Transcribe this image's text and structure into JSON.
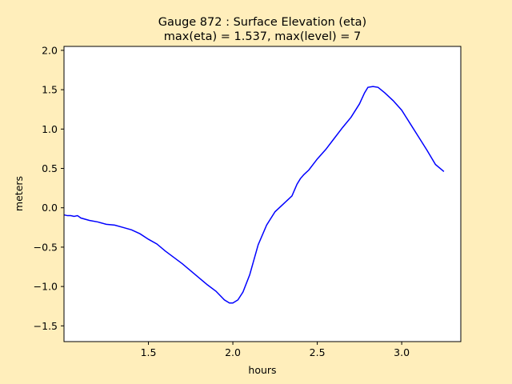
{
  "chart_data": {
    "type": "line",
    "title_line1": "Gauge 872 : Surface Elevation (eta)",
    "title_line2": "max(eta) =   1.537,    max(level) = 7",
    "xlabel": "hours",
    "ylabel": "meters",
    "xlim": [
      1.0,
      3.35
    ],
    "ylim": [
      -1.7,
      2.05
    ],
    "xticks": [
      1.5,
      2.0,
      2.5,
      3.0
    ],
    "xtick_labels": [
      "1.5",
      "2.0",
      "2.5",
      "3.0"
    ],
    "yticks": [
      2.0,
      1.5,
      1.0,
      0.5,
      0.0,
      -0.5,
      -1.0,
      -1.5
    ],
    "ytick_labels": [
      "2.0",
      "1.5",
      "1.0",
      "0.5",
      "0.0",
      "−0.5",
      "−1.0",
      "−1.5"
    ],
    "grid": false,
    "series": [
      {
        "color": "#0000ff",
        "x": [
          1.0,
          1.02,
          1.04,
          1.06,
          1.08,
          1.1,
          1.15,
          1.2,
          1.25,
          1.3,
          1.35,
          1.4,
          1.45,
          1.5,
          1.55,
          1.6,
          1.65,
          1.7,
          1.75,
          1.8,
          1.85,
          1.9,
          1.95,
          1.98,
          2.0,
          2.03,
          2.06,
          2.1,
          2.15,
          2.2,
          2.25,
          2.3,
          2.35,
          2.38,
          2.4,
          2.42,
          2.45,
          2.5,
          2.55,
          2.6,
          2.65,
          2.7,
          2.75,
          2.78,
          2.8,
          2.83,
          2.86,
          2.9,
          2.95,
          3.0,
          3.05,
          3.1,
          3.15,
          3.2,
          3.25
        ],
        "y": [
          -0.09,
          -0.1,
          -0.1,
          -0.11,
          -0.1,
          -0.13,
          -0.16,
          -0.18,
          -0.21,
          -0.22,
          -0.25,
          -0.28,
          -0.33,
          -0.4,
          -0.46,
          -0.55,
          -0.63,
          -0.71,
          -0.8,
          -0.89,
          -0.98,
          -1.06,
          -1.17,
          -1.21,
          -1.21,
          -1.17,
          -1.07,
          -0.85,
          -0.47,
          -0.22,
          -0.05,
          0.05,
          0.15,
          0.3,
          0.37,
          0.42,
          0.48,
          0.62,
          0.74,
          0.88,
          1.02,
          1.15,
          1.32,
          1.46,
          1.53,
          1.54,
          1.53,
          1.46,
          1.36,
          1.24,
          1.07,
          0.9,
          0.73,
          0.55,
          0.46
        ]
      }
    ]
  }
}
